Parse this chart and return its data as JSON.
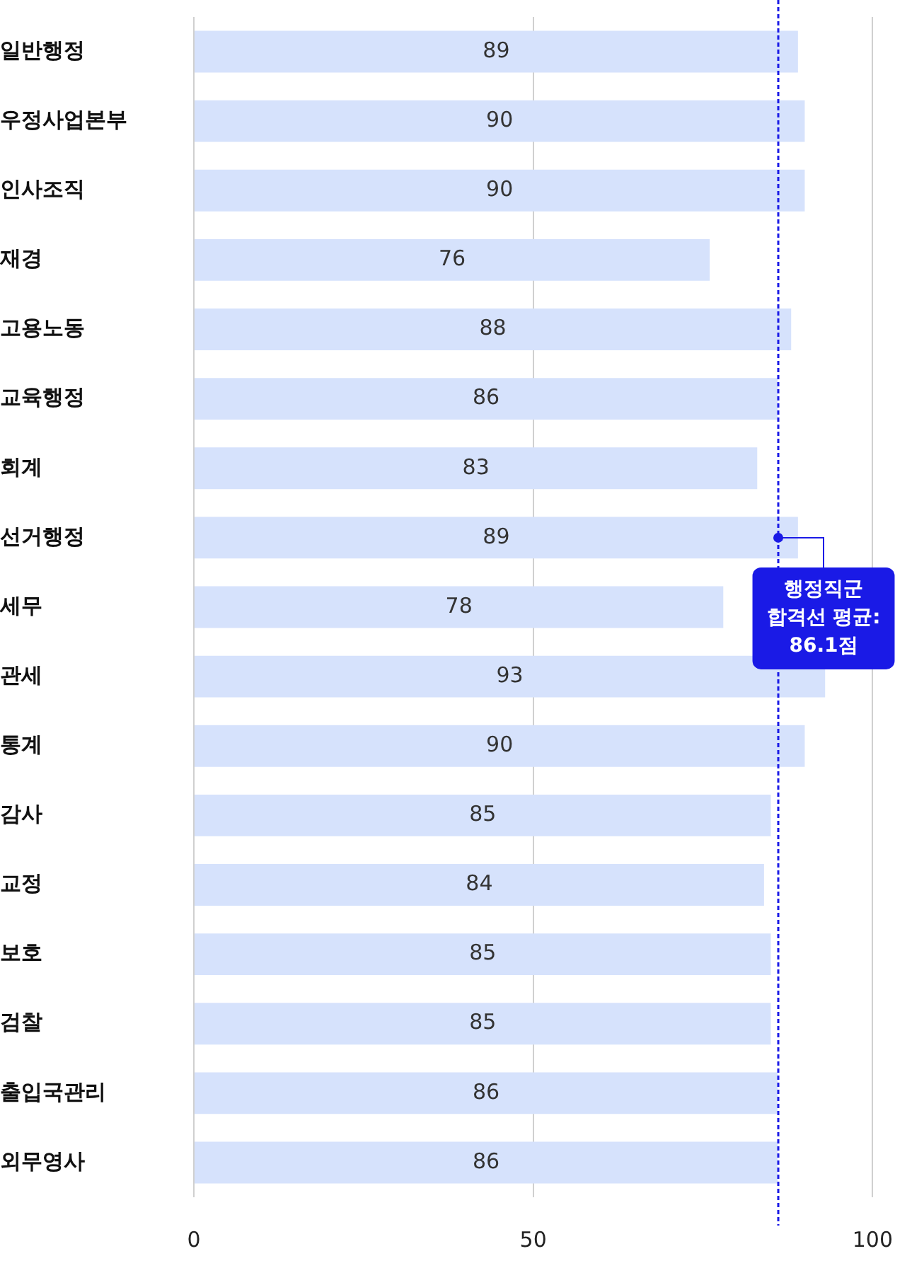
{
  "chart_data": {
    "type": "bar",
    "orientation": "horizontal",
    "categories": [
      "일반행정",
      "우정사업본부",
      "인사조직",
      "재경",
      "고용노동",
      "교육행정",
      "회계",
      "선거행정",
      "세무",
      "관세",
      "통계",
      "감사",
      "교정",
      "보호",
      "검찰",
      "출입국관리",
      "외무영사"
    ],
    "values": [
      89,
      90,
      90,
      76,
      88,
      86,
      83,
      89,
      78,
      93,
      90,
      85,
      84,
      85,
      85,
      86,
      86
    ],
    "color": "#d6e2fc",
    "xlim": [
      0,
      100
    ],
    "xticks": [
      0,
      50,
      100
    ],
    "grid": "x",
    "legend": false,
    "data_labels": true,
    "ref_lines": [
      {
        "axis": "x",
        "value": 86.1,
        "color": "#1a1ae6",
        "line_style": "dashed"
      }
    ],
    "annotations": [
      {
        "text": "행정직군\n합격선 평균:\n86.1점",
        "x": 86.1,
        "y": "선거행정"
      }
    ]
  }
}
